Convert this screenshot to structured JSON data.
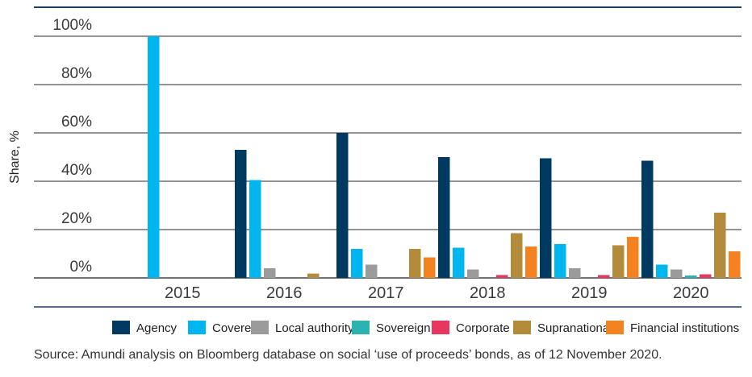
{
  "chart_data": {
    "type": "bar",
    "ylabel": "Share, %",
    "ylim": [
      0,
      100
    ],
    "yticks": [
      "0%",
      "20%",
      "40%",
      "60%",
      "80%",
      "100%"
    ],
    "ytick_values": [
      0,
      20,
      40,
      60,
      80,
      100
    ],
    "grid": true,
    "legend_position": "bottom",
    "categories": [
      "2015",
      "2016",
      "2017",
      "2018",
      "2019",
      "2020"
    ],
    "series": [
      {
        "name": "Agency",
        "color": "#003a63",
        "values": [
          0,
          53,
          60,
          50,
          49.5,
          48.5
        ]
      },
      {
        "name": "Covered",
        "color": "#00b6f0",
        "values": [
          100,
          40.5,
          12,
          12.5,
          14,
          5.5
        ]
      },
      {
        "name": "Local authority",
        "color": "#9b9b9b",
        "values": [
          0,
          4,
          5.5,
          3.5,
          4,
          3.5
        ]
      },
      {
        "name": "Sovereign",
        "color": "#2bb3b1",
        "values": [
          0,
          0,
          0,
          0,
          0,
          1
        ]
      },
      {
        "name": "Corporate",
        "color": "#e8375f",
        "values": [
          0,
          0,
          0,
          1.2,
          1.2,
          1.5
        ]
      },
      {
        "name": "Supranational",
        "color": "#b38b3a",
        "values": [
          0,
          1.8,
          12,
          18.5,
          13.5,
          27
        ]
      },
      {
        "name": "Financial institutions",
        "color": "#f58220",
        "values": [
          0,
          0,
          8.5,
          13,
          17,
          11
        ]
      }
    ]
  },
  "source": "Source: Amundi analysis on Bloomberg database on social ‘use of proceeds’ bonds, as of 12 November 2020."
}
